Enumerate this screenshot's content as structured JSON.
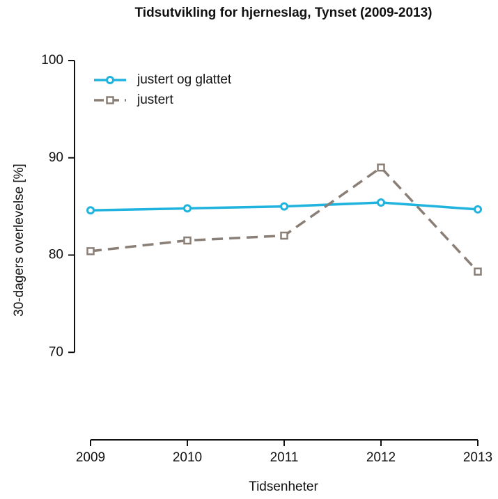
{
  "chart_data": {
    "type": "line",
    "title": "Tidsutvikling for hjerneslag, Tynset (2009-2013)",
    "x_label": "Tidsenheter",
    "y_label": "30-dagers overlevelse [%]",
    "x": [
      2009,
      2010,
      2011,
      2012,
      2013
    ],
    "series": [
      {
        "name": "justert og glattet",
        "color": "#1fb3de",
        "marker": "circle",
        "dash": false,
        "values": [
          84.6,
          84.8,
          85.0,
          85.4,
          84.7
        ]
      },
      {
        "name": "justert",
        "color": "#8a7f77",
        "marker": "square",
        "dash": true,
        "values": [
          80.4,
          81.5,
          82.0,
          89.0,
          78.3
        ]
      }
    ],
    "xlim": [
      2009,
      2013
    ],
    "xticks": [
      2009,
      2010,
      2011,
      2012,
      2013
    ],
    "ylim": [
      60,
      100
    ],
    "yticks": [
      70,
      80,
      90,
      100
    ],
    "legend": "top-left"
  }
}
